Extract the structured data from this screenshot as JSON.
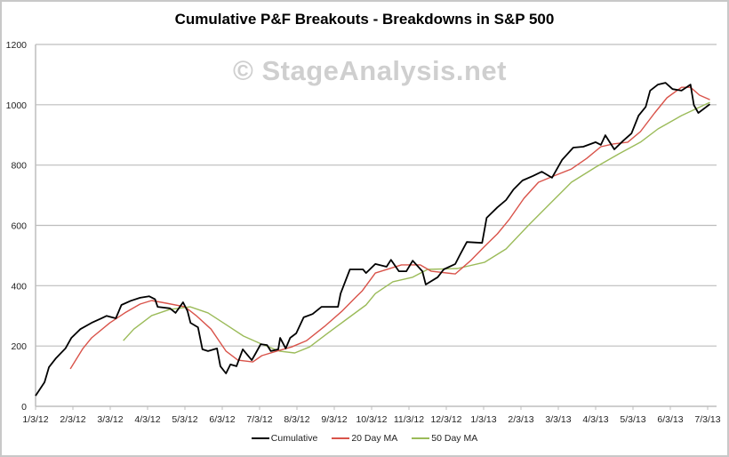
{
  "chart_data": {
    "type": "line",
    "title": "Cumulative P&F Breakouts - Breakdowns in S&P 500",
    "watermark": "© StageAnalysis.net",
    "xlabel": "",
    "ylabel": "",
    "x_unit": "months since 1/3/12",
    "ylim": [
      0,
      1200
    ],
    "yticks": [
      0,
      200,
      400,
      600,
      800,
      1000,
      1200
    ],
    "xticks": [
      "1/3/12",
      "2/3/12",
      "3/3/12",
      "4/3/12",
      "5/3/12",
      "6/3/12",
      "7/3/12",
      "8/3/12",
      "9/3/12",
      "10/3/12",
      "11/3/12",
      "12/3/12",
      "1/3/13",
      "2/3/13",
      "3/3/13",
      "4/3/13",
      "5/3/13",
      "6/3/13",
      "7/3/13"
    ],
    "grid": "horizontal",
    "legend_position": "bottom",
    "series": [
      {
        "name": "Cumulative",
        "color": "#000000",
        "x": [
          0,
          0.24,
          0.36,
          0.55,
          0.8,
          0.96,
          1.2,
          1.5,
          1.75,
          1.9,
          2.15,
          2.3,
          2.55,
          2.8,
          3.04,
          3.2,
          3.27,
          3.6,
          3.75,
          3.95,
          4.07,
          4.15,
          4.35,
          4.47,
          4.62,
          4.86,
          4.95,
          5.1,
          5.22,
          5.38,
          5.55,
          5.79,
          5.9,
          6.03,
          6.2,
          6.3,
          6.5,
          6.55,
          6.7,
          6.82,
          6.98,
          7.18,
          7.42,
          7.66,
          8.1,
          8.17,
          8.42,
          8.77,
          8.85,
          9.1,
          9.4,
          9.52,
          9.73,
          9.93,
          10.1,
          10.36,
          10.45,
          10.77,
          10.93,
          11.24,
          11.36,
          11.55,
          11.96,
          12.08,
          12.37,
          12.6,
          12.8,
          13.04,
          13.32,
          13.56,
          13.83,
          14.1,
          14.4,
          14.67,
          15.0,
          15.14,
          15.26,
          15.5,
          15.74,
          15.96,
          16.15,
          16.34,
          16.46,
          16.67,
          16.87,
          17.06,
          17.3,
          17.54,
          17.63,
          17.75,
          18.06
        ],
        "values": [
          35,
          80,
          130,
          160,
          192,
          227,
          256,
          277,
          291,
          300,
          292,
          336,
          350,
          360,
          365,
          355,
          330,
          325,
          310,
          345,
          316,
          277,
          262,
          189,
          183,
          192,
          133,
          109,
          139,
          133,
          189,
          153,
          177,
          206,
          203,
          183,
          189,
          227,
          192,
          227,
          242,
          295,
          306,
          330,
          330,
          374,
          454,
          454,
          442,
          472,
          463,
          486,
          448,
          448,
          483,
          448,
          404,
          428,
          454,
          472,
          501,
          545,
          542,
          625,
          660,
          684,
          719,
          749,
          764,
          778,
          758,
          817,
          858,
          861,
          876,
          867,
          899,
          852,
          881,
          905,
          964,
          993,
          1047,
          1067,
          1073,
          1052,
          1047,
          1067,
          999,
          973,
          1002
        ]
      },
      {
        "name": "20 Day MA",
        "color": "#d9534a",
        "x": [
          0.93,
          1.27,
          1.5,
          1.99,
          2.39,
          2.8,
          3.11,
          3.5,
          4.0,
          4.3,
          4.7,
          5.1,
          5.42,
          5.82,
          6.06,
          6.46,
          6.86,
          7.26,
          7.74,
          8.2,
          8.6,
          8.75,
          9.1,
          9.8,
          10.3,
          10.6,
          11.24,
          11.65,
          12.03,
          12.37,
          12.68,
          13.08,
          13.47,
          13.88,
          14.35,
          14.76,
          15.14,
          15.47,
          15.86,
          16.2,
          16.58,
          16.91,
          17.3,
          17.54,
          17.78,
          18.06
        ],
        "values": [
          124,
          192,
          227,
          277,
          310,
          339,
          351,
          342,
          330,
          301,
          256,
          183,
          153,
          147,
          168,
          183,
          197,
          218,
          265,
          315,
          365,
          383,
          442,
          469,
          469,
          448,
          439,
          483,
          531,
          572,
          619,
          690,
          743,
          764,
          787,
          822,
          861,
          870,
          876,
          911,
          973,
          1023,
          1058,
          1058,
          1032,
          1017
        ]
      },
      {
        "name": "50 Day MA",
        "color": "#9bbb59",
        "x": [
          2.35,
          2.63,
          3.11,
          3.59,
          4.14,
          4.62,
          5.1,
          5.57,
          6.06,
          6.53,
          6.94,
          7.34,
          7.82,
          8.3,
          8.85,
          9.1,
          9.57,
          10.1,
          10.5,
          11.3,
          12.03,
          12.6,
          13.23,
          13.8,
          14.35,
          15.0,
          15.62,
          16.2,
          16.67,
          17.3,
          18.06
        ],
        "values": [
          218,
          256,
          301,
          321,
          330,
          310,
          271,
          233,
          206,
          183,
          177,
          197,
          242,
          286,
          336,
          374,
          413,
          428,
          454,
          457,
          478,
          522,
          604,
          675,
          743,
          793,
          837,
          876,
          920,
          964,
          1008
        ]
      }
    ]
  }
}
